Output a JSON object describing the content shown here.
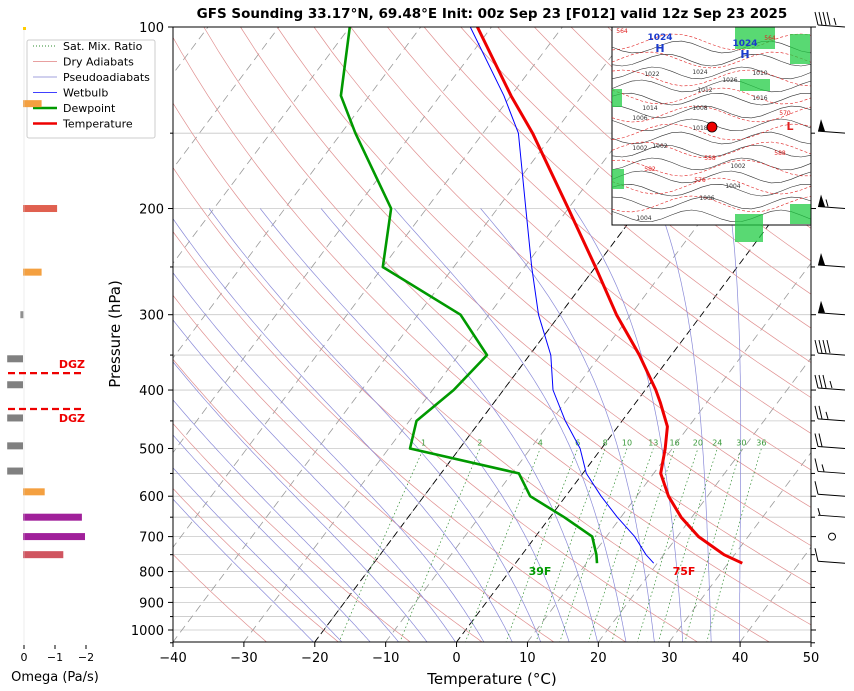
{
  "chart_data": {
    "type": "skew-t",
    "title": "GFS Sounding 33.17°N, 69.48°E Init: 00z Sep 23 [F012] valid 12z Sep 23 2025",
    "xlabel": "Temperature (°C)",
    "ylabel": "Pressure (hPa)",
    "xlim": [
      -40,
      50
    ],
    "ylim": [
      1050,
      100
    ],
    "x_ticks": [
      -40,
      -30,
      -20,
      -10,
      0,
      10,
      20,
      30,
      40,
      50
    ],
    "x_tick_labels": [
      "−40",
      "−30",
      "−20",
      "−10",
      "0",
      "10",
      "20",
      "30",
      "40",
      "50"
    ],
    "y_ticks": [
      100,
      200,
      300,
      400,
      500,
      600,
      700,
      800,
      900,
      1000
    ],
    "y_tick_labels": [
      "100",
      "200",
      "300",
      "400",
      "500",
      "600",
      "700",
      "800",
      "900",
      "1000"
    ],
    "legend": {
      "placement": "top-left",
      "entries": [
        {
          "label": "Sat. Mix. Ratio",
          "color": "#2e8b2e",
          "style": "dotted"
        },
        {
          "label": "Dry Adiabats",
          "color": "#e08080",
          "style": "solid"
        },
        {
          "label": "Pseudoadiabats",
          "color": "#8080d0",
          "style": "solid"
        },
        {
          "label": "Wetbulb",
          "color": "#0000ff",
          "style": "solid"
        },
        {
          "label": "Dewpoint",
          "color": "#009900",
          "style": "thick"
        },
        {
          "label": "Temperature",
          "color": "#ee0000",
          "style": "thick"
        }
      ]
    },
    "series": [
      {
        "name": "Temperature",
        "color": "#ee0000",
        "points": [
          [
            775,
            32
          ],
          [
            750,
            28.5
          ],
          [
            700,
            23
          ],
          [
            650,
            18.5
          ],
          [
            600,
            14.5
          ],
          [
            550,
            11
          ],
          [
            500,
            9
          ],
          [
            460,
            7
          ],
          [
            420,
            3.5
          ],
          [
            400,
            1.5
          ],
          [
            350,
            -4.5
          ],
          [
            300,
            -12
          ],
          [
            250,
            -20
          ],
          [
            200,
            -30
          ],
          [
            150,
            -43
          ],
          [
            130,
            -50
          ],
          [
            100,
            -62
          ]
        ]
      },
      {
        "name": "Dewpoint",
        "color": "#009900",
        "points": [
          [
            775,
            11.5
          ],
          [
            750,
            10.5
          ],
          [
            700,
            8
          ],
          [
            650,
            2
          ],
          [
            600,
            -5
          ],
          [
            550,
            -9
          ],
          [
            500,
            -27
          ],
          [
            450,
            -29
          ],
          [
            400,
            -27
          ],
          [
            350,
            -26
          ],
          [
            300,
            -34
          ],
          [
            250,
            -50
          ],
          [
            200,
            -55
          ],
          [
            150,
            -68
          ],
          [
            130,
            -74
          ],
          [
            100,
            -80
          ]
        ]
      },
      {
        "name": "Wetbulb",
        "color": "#0000ff",
        "points": [
          [
            775,
            19.5
          ],
          [
            750,
            17.5
          ],
          [
            700,
            14
          ],
          [
            650,
            9.5
          ],
          [
            600,
            5
          ],
          [
            550,
            0.5
          ],
          [
            500,
            -3
          ],
          [
            450,
            -8
          ],
          [
            400,
            -13
          ],
          [
            350,
            -17
          ],
          [
            300,
            -23
          ],
          [
            250,
            -29
          ],
          [
            200,
            -36
          ],
          [
            150,
            -45
          ],
          [
            130,
            -51
          ],
          [
            100,
            -63
          ]
        ]
      }
    ],
    "mixing_ratio_labels": [
      "1",
      "2",
      "4",
      "6",
      "8",
      "10",
      "13",
      "16",
      "20",
      "24",
      "30",
      "36"
    ],
    "surface_labels": {
      "dewpoint": "39F",
      "temperature": "75F"
    },
    "omega_panel": {
      "xlabel": "Omega (Pa/s)",
      "ticks": [
        "0",
        "−1",
        "−2"
      ],
      "dgz_label": "DGZ",
      "dgz_bounds_hpa": [
        375,
        430
      ],
      "bars": [
        {
          "p": 134,
          "omega": -0.6,
          "color": "#f4a040"
        },
        {
          "p": 200,
          "omega": -1.1,
          "color": "#e06050"
        },
        {
          "p": 255,
          "omega": -0.6,
          "color": "#f4a040"
        },
        {
          "p": 300,
          "omega": 0.1,
          "color": "#909090"
        },
        {
          "p": 355,
          "omega": 0.6,
          "color": "#808080"
        },
        {
          "p": 392,
          "omega": 0.6,
          "color": "#808080"
        },
        {
          "p": 445,
          "omega": 0.6,
          "color": "#808080"
        },
        {
          "p": 495,
          "omega": 0.6,
          "color": "#808080"
        },
        {
          "p": 545,
          "omega": 0.6,
          "color": "#808080"
        },
        {
          "p": 590,
          "omega": -0.7,
          "color": "#f4a040"
        },
        {
          "p": 650,
          "omega": -1.9,
          "color": "#a0209a"
        },
        {
          "p": 700,
          "omega": -2.0,
          "color": "#a0209a"
        },
        {
          "p": 750,
          "omega": -1.3,
          "color": "#d05560"
        }
      ]
    },
    "inset_map": {
      "pressure_labels": [
        "1024",
        "H",
        "1024",
        "H",
        "1022",
        "1024",
        "1026",
        "1002",
        "1002",
        "1002",
        "1004",
        "1004",
        "1006",
        "1006",
        "1008",
        "1010",
        "1012",
        "1014",
        "1016",
        "1018",
        "L",
        "564",
        "564",
        "576",
        "582",
        "588",
        "570",
        "558"
      ]
    },
    "wind_barbs": [
      {
        "p": 100,
        "kt": 45
      },
      {
        "p": 150,
        "kt": 50
      },
      {
        "p": 200,
        "kt": 55
      },
      {
        "p": 250,
        "kt": 50
      },
      {
        "p": 300,
        "kt": 50
      },
      {
        "p": 350,
        "kt": 40
      },
      {
        "p": 400,
        "kt": 35
      },
      {
        "p": 450,
        "kt": 25
      },
      {
        "p": 500,
        "kt": 20
      },
      {
        "p": 550,
        "kt": 15
      },
      {
        "p": 600,
        "kt": 10
      },
      {
        "p": 650,
        "kt": 5
      },
      {
        "p": 700,
        "kt": 0
      },
      {
        "p": 775,
        "kt": 10
      }
    ]
  }
}
